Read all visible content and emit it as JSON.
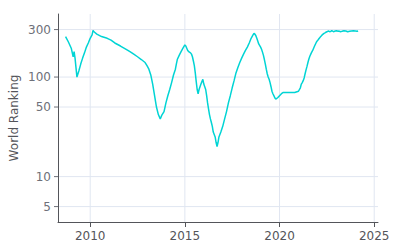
{
  "chart_data": {
    "type": "line",
    "ylabel": "World Ranking",
    "color": "#00d4d4",
    "log": "y",
    "grid": true,
    "xlim": [
      2008.3,
      2025.2
    ],
    "ylim": [
      3.5,
      430
    ],
    "xticks": [
      2010,
      2015,
      2020,
      2025
    ],
    "yticks": [
      5,
      10,
      50,
      100,
      300
    ],
    "x": [
      2008.7,
      2008.85,
      2009.0,
      2009.1,
      2009.15,
      2009.2,
      2009.3,
      2009.4,
      2009.5,
      2009.6,
      2009.7,
      2009.8,
      2009.9,
      2010.0,
      2010.1,
      2010.15,
      2010.2,
      2010.35,
      2010.6,
      2010.9,
      2011.1,
      2011.3,
      2011.6,
      2011.9,
      2012.1,
      2012.3,
      2012.5,
      2012.7,
      2012.9,
      2013.0,
      2013.1,
      2013.2,
      2013.3,
      2013.4,
      2013.5,
      2013.6,
      2013.7,
      2013.75,
      2013.8,
      2013.9,
      2014.0,
      2014.1,
      2014.2,
      2014.3,
      2014.4,
      2014.5,
      2014.55,
      2014.6,
      2014.7,
      2014.8,
      2014.9,
      2015.0,
      2015.05,
      2015.1,
      2015.15,
      2015.2,
      2015.3,
      2015.35,
      2015.4,
      2015.45,
      2015.5,
      2015.55,
      2015.6,
      2015.65,
      2015.7,
      2015.75,
      2015.8,
      2015.85,
      2015.9,
      2015.95,
      2016.0,
      2016.1,
      2016.15,
      2016.2,
      2016.25,
      2016.3,
      2016.35,
      2016.4,
      2016.45,
      2016.5,
      2016.6,
      2016.65,
      2016.7,
      2016.75,
      2016.8,
      2016.9,
      2017.0,
      2017.1,
      2017.2,
      2017.3,
      2017.4,
      2017.5,
      2017.6,
      2017.7,
      2017.8,
      2017.9,
      2018.0,
      2018.1,
      2018.2,
      2018.3,
      2018.4,
      2018.5,
      2018.6,
      2018.65,
      2018.7,
      2018.75,
      2018.8,
      2018.85,
      2018.9,
      2019.0,
      2019.05,
      2019.1,
      2019.15,
      2019.2,
      2019.25,
      2019.3,
      2019.35,
      2019.4,
      2019.45,
      2019.5,
      2019.55,
      2019.6,
      2019.65,
      2019.7,
      2019.75,
      2019.8,
      2019.9,
      2020.0,
      2020.1,
      2020.2,
      2020.5,
      2020.8,
      2021.0,
      2021.1,
      2021.15,
      2021.2,
      2021.25,
      2021.3,
      2021.35,
      2021.4,
      2021.45,
      2021.5,
      2021.55,
      2021.6,
      2021.65,
      2021.7,
      2021.75,
      2021.8,
      2021.85,
      2021.9,
      2021.95,
      2022.0,
      2022.05,
      2022.1,
      2022.15,
      2022.2,
      2022.25,
      2022.3,
      2022.35,
      2022.4,
      2022.45,
      2022.5,
      2022.55,
      2022.6,
      2022.65,
      2022.7,
      2022.75,
      2022.8,
      2022.85,
      2022.9,
      2022.95,
      2023.0,
      2023.05,
      2023.1,
      2023.15,
      2023.2,
      2023.3,
      2023.4,
      2023.5,
      2023.6,
      2023.7,
      2023.8,
      2023.9,
      2024.0,
      2024.1,
      2024.15
    ],
    "values": [
      255,
      225,
      195,
      160,
      180,
      155,
      100,
      115,
      135,
      155,
      175,
      200,
      220,
      245,
      265,
      295,
      285,
      270,
      255,
      245,
      235,
      220,
      205,
      190,
      180,
      170,
      160,
      150,
      140,
      130,
      120,
      105,
      85,
      65,
      50,
      42,
      38,
      40,
      42,
      45,
      55,
      65,
      75,
      88,
      105,
      120,
      135,
      150,
      165,
      180,
      195,
      210,
      205,
      195,
      185,
      180,
      175,
      170,
      160,
      145,
      130,
      110,
      90,
      75,
      68,
      75,
      80,
      85,
      90,
      95,
      85,
      75,
      65,
      55,
      48,
      42,
      38,
      35,
      32,
      28,
      25,
      22,
      20,
      22,
      25,
      28,
      32,
      38,
      45,
      55,
      65,
      78,
      92,
      110,
      125,
      140,
      155,
      170,
      185,
      200,
      220,
      245,
      265,
      275,
      270,
      260,
      245,
      230,
      215,
      200,
      190,
      178,
      165,
      150,
      135,
      120,
      108,
      100,
      95,
      88,
      80,
      72,
      68,
      65,
      62,
      60,
      62,
      65,
      68,
      70,
      70,
      70,
      72,
      78,
      85,
      88,
      92,
      98,
      108,
      118,
      128,
      140,
      152,
      162,
      170,
      178,
      185,
      195,
      205,
      215,
      225,
      232,
      238,
      245,
      252,
      258,
      265,
      270,
      275,
      278,
      282,
      285,
      288,
      290,
      285,
      288,
      292,
      290,
      285,
      288,
      290,
      292,
      290,
      288,
      290,
      285,
      288,
      292,
      290,
      285,
      288,
      290,
      292,
      290,
      288,
      290
    ]
  }
}
